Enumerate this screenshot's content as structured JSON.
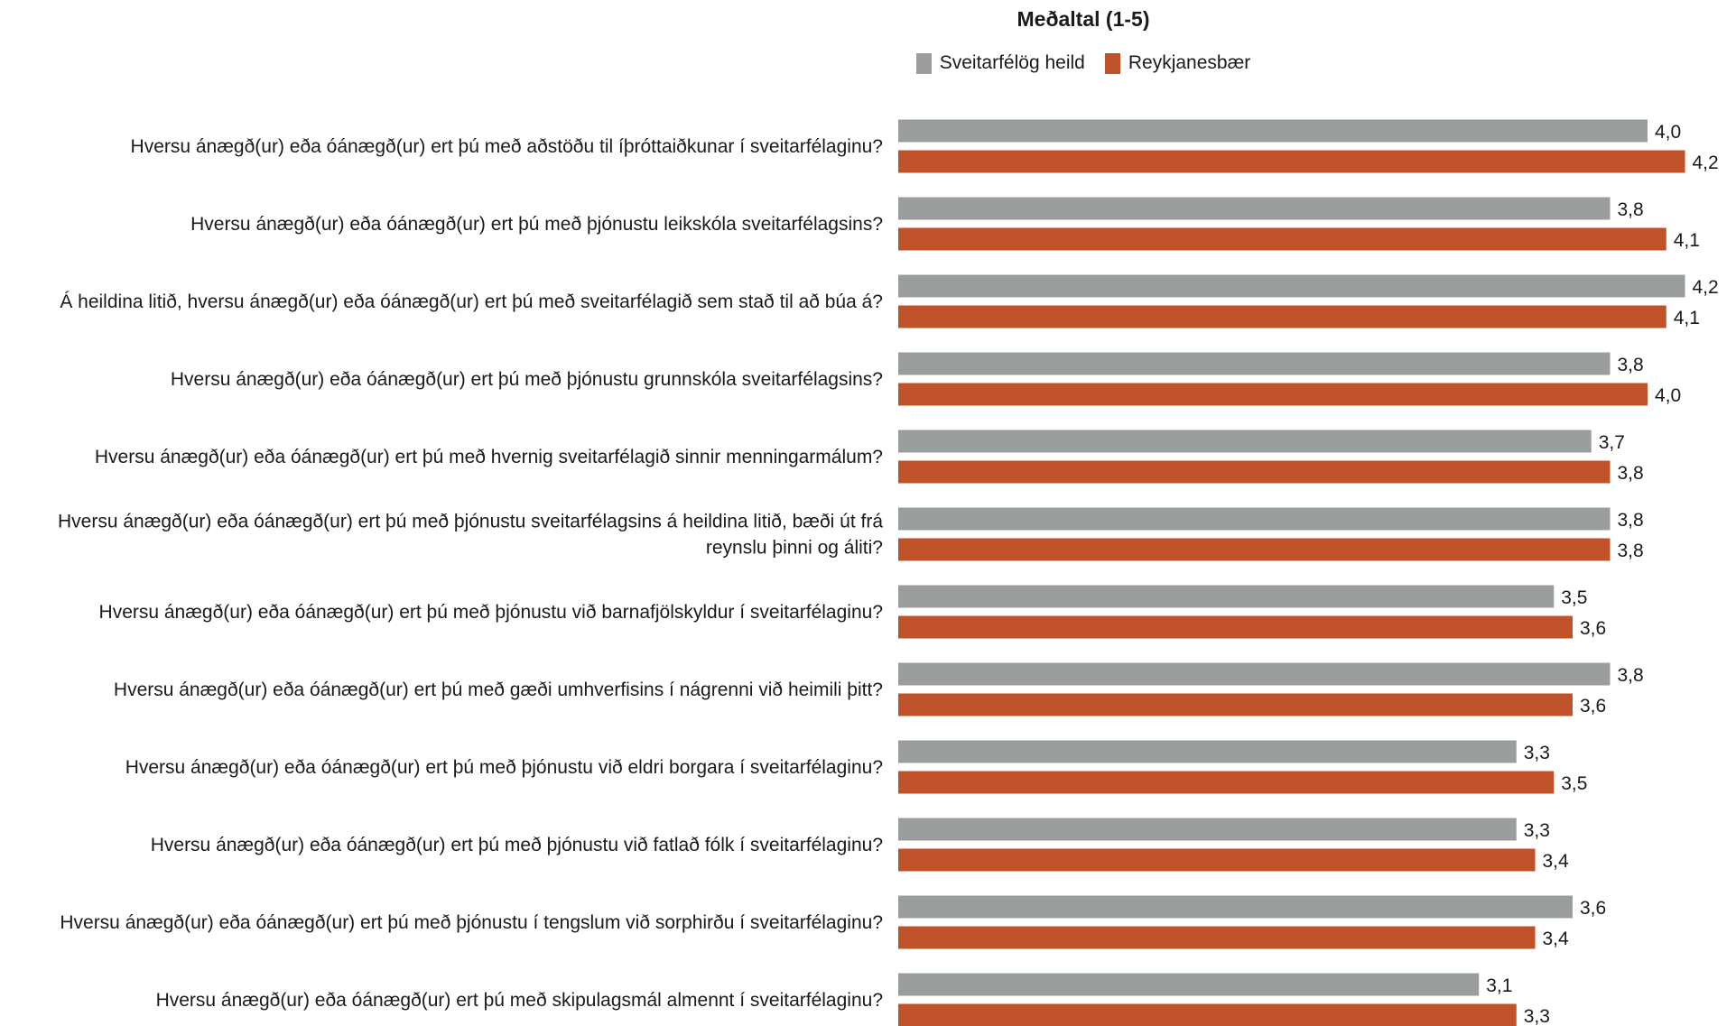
{
  "chart_data": {
    "type": "bar",
    "orientation": "horizontal",
    "title": "Meðaltal (1-5)",
    "xlim": [
      0,
      5
    ],
    "grid": false,
    "legend_position": "top-center",
    "categories": [
      "Hversu ánægð(ur) eða óánægð(ur) ert þú með aðstöðu til íþróttaiðkunar í sveitarfélaginu?",
      "Hversu ánægð(ur) eða óánægð(ur) ert þú með þjónustu leikskóla sveitarfélagsins?",
      "Á heildina litið, hversu ánægð(ur) eða óánægð(ur) ert þú með sveitarfélagið sem stað til að búa á?",
      "Hversu ánægð(ur) eða óánægð(ur) ert þú með þjónustu grunnskóla sveitarfélagsins?",
      "Hversu ánægð(ur) eða óánægð(ur) ert þú með hvernig sveitarfélagið sinnir menningarmálum?",
      "Hversu ánægð(ur) eða óánægð(ur) ert þú með þjónustu sveitarfélagsins á heildina litið, bæði út frá reynslu þinni og áliti?",
      "Hversu ánægð(ur) eða óánægð(ur) ert þú með þjónustu við barnafjölskyldur í sveitarfélaginu?",
      "Hversu ánægð(ur) eða óánægð(ur) ert þú með gæði umhverfisins í nágrenni við heimili þitt?",
      "Hversu ánægð(ur) eða óánægð(ur) ert þú með þjónustu við eldri borgara í sveitarfélaginu?",
      "Hversu ánægð(ur) eða óánægð(ur) ert þú með þjónustu við fatlað fólk í sveitarfélaginu?",
      "Hversu ánægð(ur) eða óánægð(ur) ert þú með þjónustu í tengslum við sorphirðu í sveitarfélaginu?",
      "Hversu ánægð(ur) eða óánægð(ur) ert þú með skipulagsmál almennt í sveitarfélaginu?"
    ],
    "category_lines": [
      [
        "Hversu ánægð(ur) eða óánægð(ur) ert þú með aðstöðu til íþróttaiðkunar í sveitarfélaginu?"
      ],
      [
        "Hversu ánægð(ur) eða óánægð(ur) ert þú með þjónustu leikskóla sveitarfélagsins?"
      ],
      [
        "Á heildina litið, hversu ánægð(ur) eða óánægð(ur) ert þú með sveitarfélagið sem stað til að búa á?"
      ],
      [
        "Hversu ánægð(ur) eða óánægð(ur) ert þú með þjónustu grunnskóla sveitarfélagsins?"
      ],
      [
        "Hversu ánægð(ur) eða óánægð(ur) ert þú með hvernig sveitarfélagið sinnir menningarmálum?"
      ],
      [
        "Hversu ánægð(ur) eða óánægð(ur) ert þú með þjónustu sveitarfélagsins á heildina litið, bæði út frá",
        "reynslu þinni og áliti?"
      ],
      [
        "Hversu ánægð(ur) eða óánægð(ur) ert þú með þjónustu við barnafjölskyldur í sveitarfélaginu?"
      ],
      [
        "Hversu ánægð(ur) eða óánægð(ur) ert þú með gæði umhverfisins í nágrenni við heimili þitt?"
      ],
      [
        "Hversu ánægð(ur) eða óánægð(ur) ert þú með þjónustu við eldri borgara í sveitarfélaginu?"
      ],
      [
        "Hversu ánægð(ur) eða óánægð(ur) ert þú með þjónustu við fatlað fólk í sveitarfélaginu?"
      ],
      [
        "Hversu ánægð(ur) eða óánægð(ur) ert þú með þjónustu í tengslum við sorphirðu í sveitarfélaginu?"
      ],
      [
        "Hversu ánægð(ur) eða óánægð(ur) ert þú með skipulagsmál almennt í sveitarfélaginu?"
      ]
    ],
    "series": [
      {
        "name": "Sveitarfélög heild",
        "color": "#999d9e",
        "values": [
          4.0,
          3.8,
          4.2,
          3.8,
          3.7,
          3.8,
          3.5,
          3.8,
          3.3,
          3.3,
          3.6,
          3.1
        ],
        "labels": [
          "4,0",
          "3,8",
          "4,2",
          "3,8",
          "3,7",
          "3,8",
          "3,5",
          "3,8",
          "3,3",
          "3,3",
          "3,6",
          "3,1"
        ]
      },
      {
        "name": "Reykjanesbær",
        "color": "#c0522a",
        "values": [
          4.2,
          4.1,
          4.1,
          4.0,
          3.8,
          3.8,
          3.6,
          3.6,
          3.5,
          3.4,
          3.4,
          3.3
        ],
        "labels": [
          "4,2",
          "4,1",
          "4,1",
          "4,0",
          "3,8",
          "3,8",
          "3,6",
          "3,6",
          "3,5",
          "3,4",
          "3,4",
          "3,3"
        ]
      }
    ]
  }
}
